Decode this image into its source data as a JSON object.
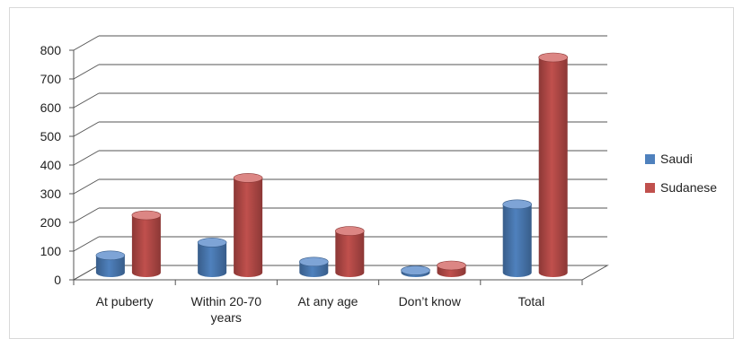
{
  "chart_data": {
    "type": "bar",
    "categories": [
      [
        "At puberty"
      ],
      [
        "Within 20-70",
        "years"
      ],
      [
        "At any age"
      ],
      [
        "Don’t know"
      ],
      [
        "Total"
      ]
    ],
    "series": [
      {
        "name": "Saudi",
        "values": [
          60,
          105,
          38,
          8,
          238
        ],
        "color": "#4f81bd",
        "side_color": "#385d8a",
        "top_color": "#7ea4d6"
      },
      {
        "name": "Sudanese",
        "values": [
          200,
          330,
          145,
          25,
          750
        ],
        "color": "#c0504d",
        "side_color": "#8c3836",
        "top_color": "#dc8684"
      }
    ],
    "ylim": [
      0,
      800
    ],
    "yticks": [
      0,
      100,
      200,
      300,
      400,
      500,
      600,
      700,
      800
    ],
    "grid": true,
    "legend_position": "right",
    "three_d": true
  }
}
